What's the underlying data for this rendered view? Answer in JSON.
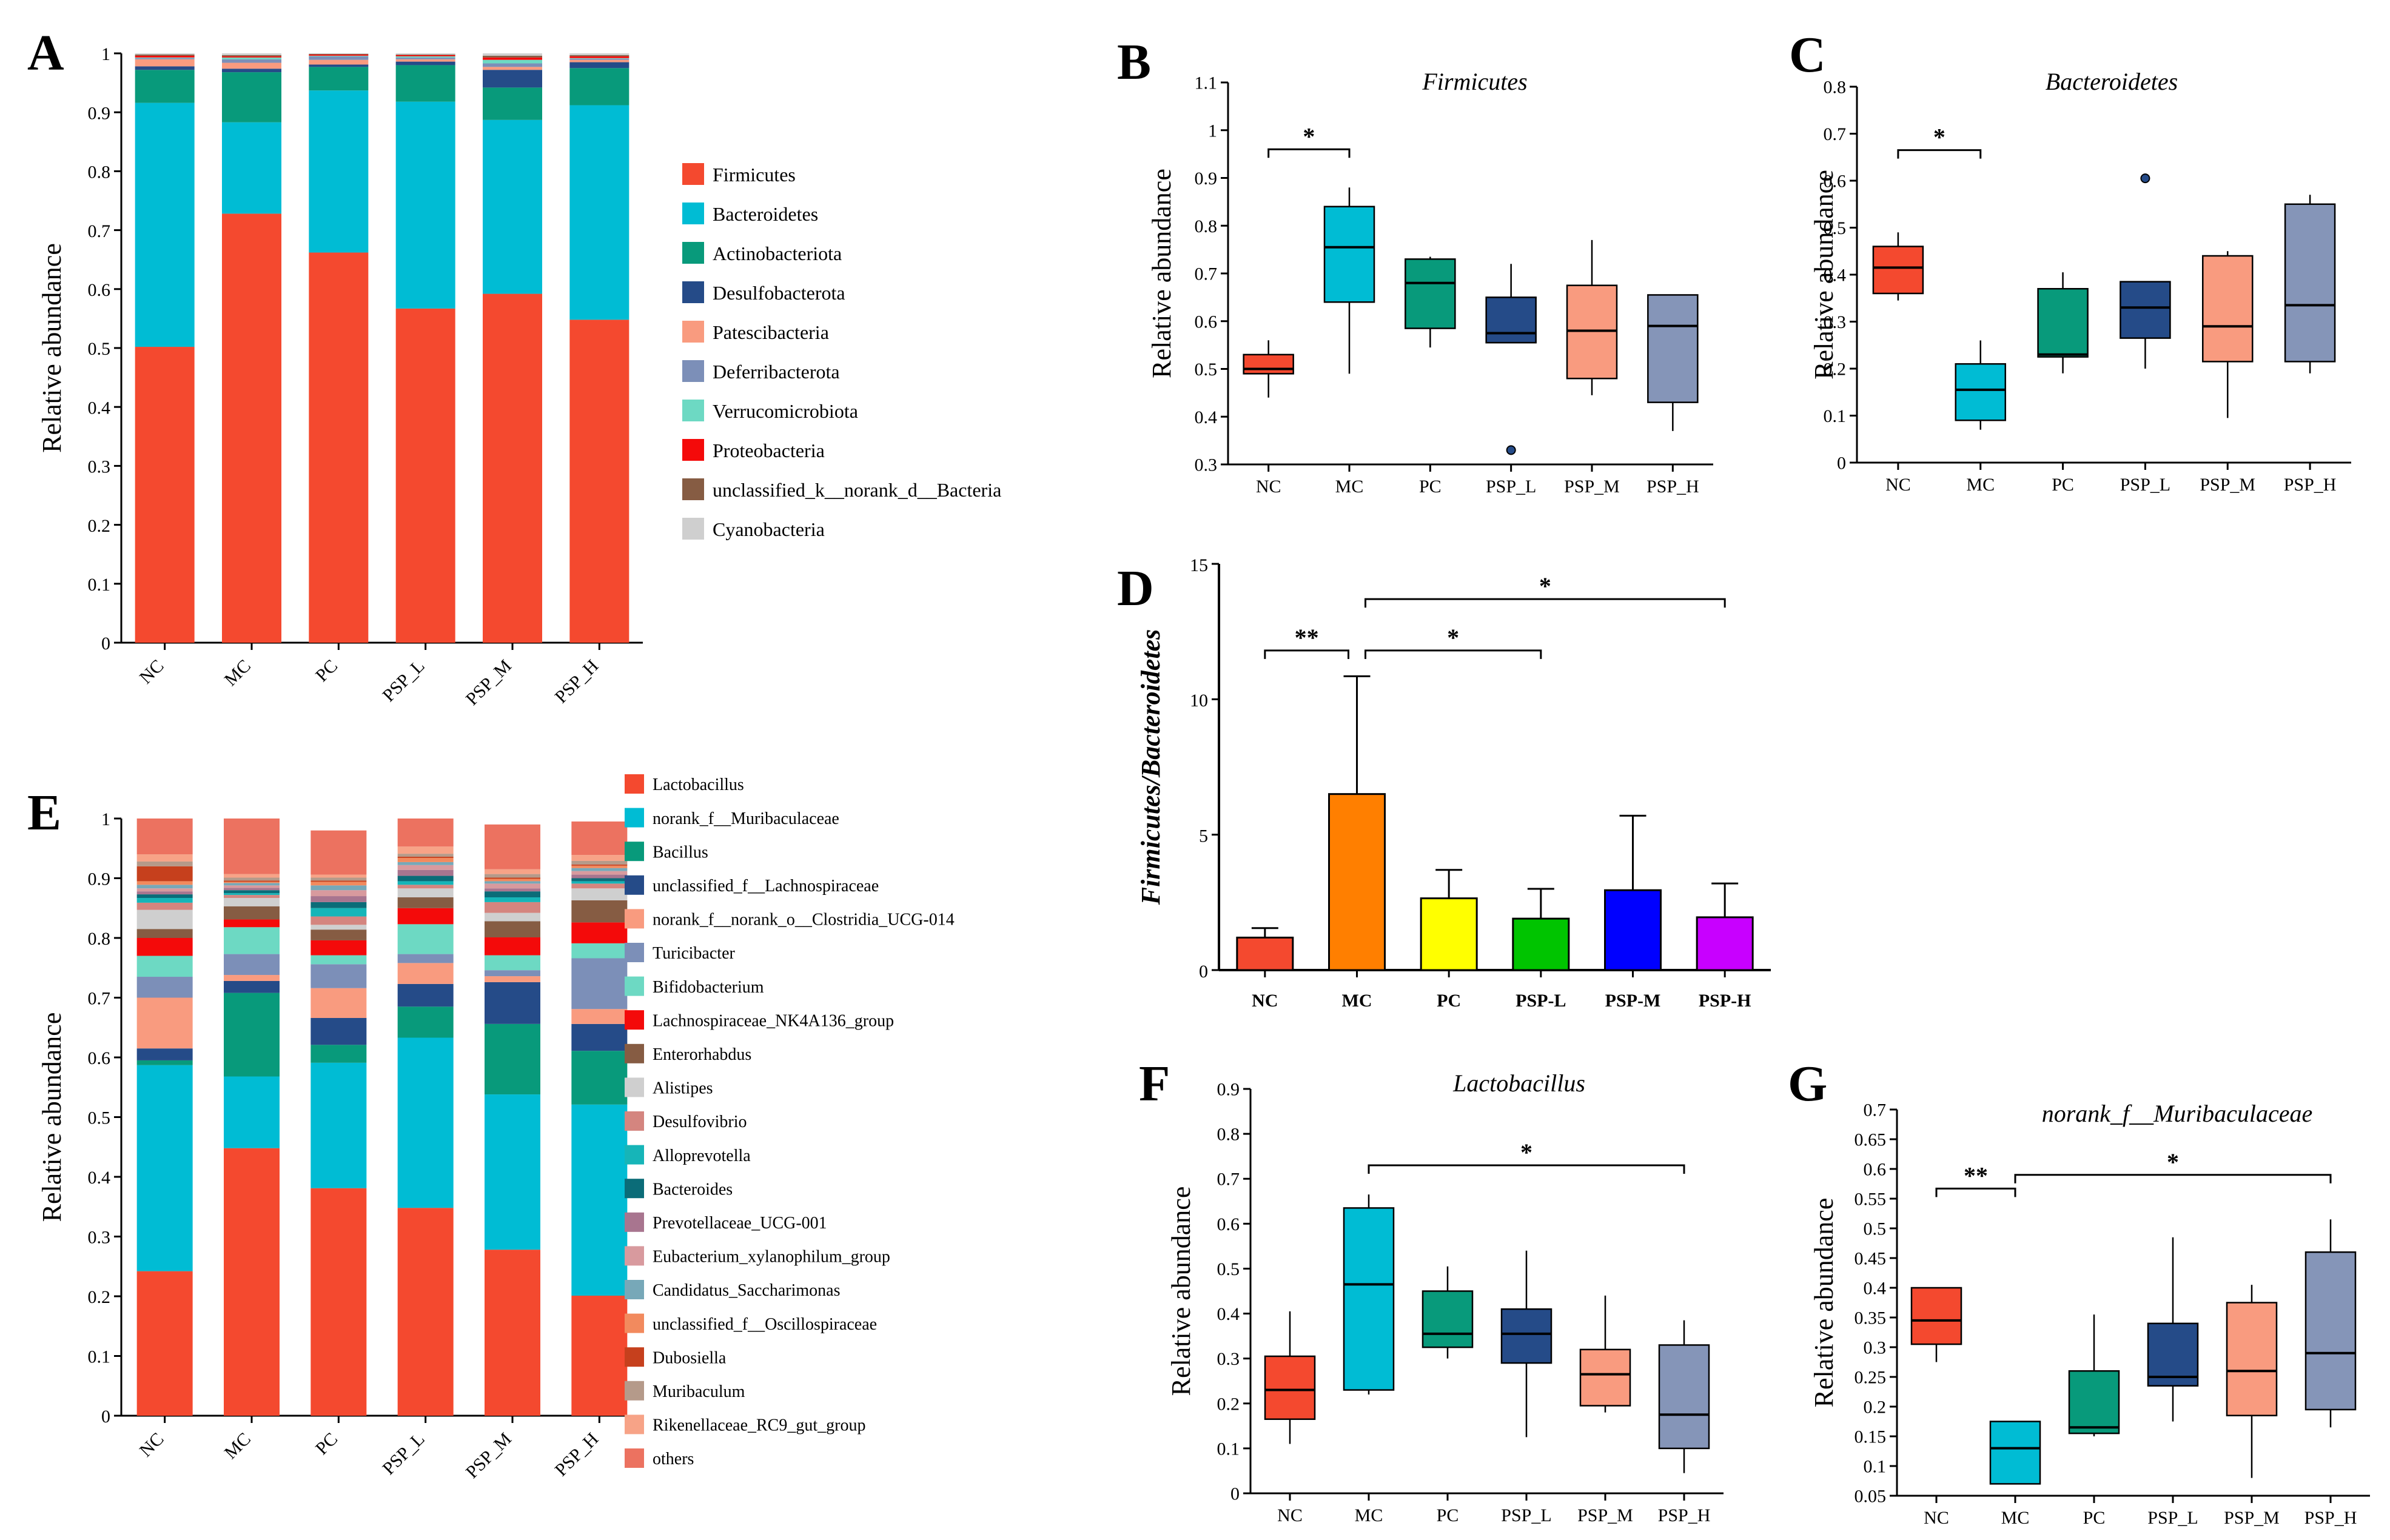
{
  "figure": {
    "colors": {
      "Firmicutes": "#f4492f",
      "Bacteroidetes": "#00bcd4",
      "Actinobacteriota": "#089a7b",
      "Desulfobacterota": "#254b88",
      "Patescibacteria": "#f99b7f",
      "Deferribacterota": "#7c8fb8",
      "Verrucomicrobiota": "#6dd9c3",
      "Proteobacteria": "#f40a0a",
      "unclassified_k__norank_d__Bacteria": "#865c43",
      "Cyanobacteria": "#cfcfcf",
      "box_NC": "#f4492f",
      "box_MC": "#00bcd4",
      "box_PC": "#089a7b",
      "box_PSP_L": "#254b88",
      "box_PSP_M": "#f99b7f",
      "box_PSP_H": "#8595b8"
    }
  },
  "chart_data": [
    {
      "panel": "A",
      "type": "bar",
      "stacked": true,
      "title": "",
      "xlabel": "",
      "ylabel": "Relative abundance",
      "ylim": [
        0,
        1
      ],
      "yticks": [
        "0",
        "0.1",
        "0.2",
        "0.3",
        "0.4",
        "0.5",
        "0.6",
        "0.7",
        "0.8",
        "0.9",
        "1"
      ],
      "categories": [
        "NC",
        "MC",
        "PC",
        "PSP_L",
        "PSP_M",
        "PSP_H"
      ],
      "series": [
        {
          "name": "Firmicutes",
          "values": [
            0.502,
            0.728,
            0.662,
            0.567,
            0.592,
            0.548
          ]
        },
        {
          "name": "Bacteroidetes",
          "values": [
            0.414,
            0.155,
            0.275,
            0.351,
            0.295,
            0.364
          ]
        },
        {
          "name": "Actinobacteriota",
          "values": [
            0.056,
            0.085,
            0.04,
            0.062,
            0.055,
            0.063
          ]
        },
        {
          "name": "Desulfobacterota",
          "values": [
            0.006,
            0.006,
            0.004,
            0.006,
            0.03,
            0.01
          ]
        },
        {
          "name": "Patescibacteria",
          "values": [
            0.012,
            0.01,
            0.008,
            0.004,
            0.005,
            0.004
          ]
        },
        {
          "name": "Deferribacterota",
          "values": [
            0.002,
            0.006,
            0.006,
            0.003,
            0.006,
            0.002
          ]
        },
        {
          "name": "Verrucomicrobiota",
          "values": [
            0.001,
            0.003,
            0.001,
            0.002,
            0.006,
            0.001
          ]
        },
        {
          "name": "Proteobacteria",
          "values": [
            0.003,
            0.002,
            0.002,
            0.002,
            0.004,
            0.003
          ]
        },
        {
          "name": "unclassified_k__norank_d__Bacteria",
          "values": [
            0.002,
            0.002,
            0.001,
            0.001,
            0.003,
            0.002
          ]
        },
        {
          "name": "Cyanobacteria",
          "values": [
            0.002,
            0.003,
            0.001,
            0.002,
            0.004,
            0.003
          ]
        }
      ]
    },
    {
      "panel": "B",
      "type": "box",
      "title": "Firmicutes",
      "ylabel": "Relative abundance",
      "ylim": [
        0.3,
        1.1
      ],
      "yticks": [
        "0.3",
        "0.4",
        "0.5",
        "0.6",
        "0.7",
        "0.8",
        "0.9",
        "1",
        "1.1"
      ],
      "categories": [
        "NC",
        "MC",
        "PC",
        "PSP_L",
        "PSP_M",
        "PSP_H"
      ],
      "boxes": [
        {
          "min": 0.44,
          "q1": 0.49,
          "median": 0.5,
          "q3": 0.53,
          "max": 0.56
        },
        {
          "min": 0.49,
          "q1": 0.64,
          "median": 0.755,
          "q3": 0.84,
          "max": 0.88
        },
        {
          "min": 0.545,
          "q1": 0.585,
          "median": 0.68,
          "q3": 0.73,
          "max": 0.735
        },
        {
          "min": 0.555,
          "q1": 0.555,
          "median": 0.575,
          "q3": 0.65,
          "max": 0.72,
          "outliers": [
            0.33
          ]
        },
        {
          "min": 0.445,
          "q1": 0.48,
          "median": 0.58,
          "q3": 0.675,
          "max": 0.77
        },
        {
          "min": 0.37,
          "q1": 0.43,
          "median": 0.59,
          "q3": 0.655,
          "max": 0.655
        }
      ],
      "significance": [
        {
          "from": 0,
          "to": 1,
          "label": "*",
          "y": 0.96
        }
      ]
    },
    {
      "panel": "C",
      "type": "box",
      "title": "Bacteroidetes",
      "ylabel": "Relative abundance",
      "ylim": [
        0,
        0.8
      ],
      "yticks": [
        "0",
        "0.1",
        "0.2",
        "0.3",
        "0.4",
        "0.5",
        "0.6",
        "0.7",
        "0.8"
      ],
      "categories": [
        "NC",
        "MC",
        "PC",
        "PSP_L",
        "PSP_M",
        "PSP_H"
      ],
      "boxes": [
        {
          "min": 0.345,
          "q1": 0.36,
          "median": 0.415,
          "q3": 0.46,
          "max": 0.49
        },
        {
          "min": 0.07,
          "q1": 0.09,
          "median": 0.155,
          "q3": 0.21,
          "max": 0.26
        },
        {
          "min": 0.19,
          "q1": 0.225,
          "median": 0.23,
          "q3": 0.37,
          "max": 0.405
        },
        {
          "min": 0.2,
          "q1": 0.265,
          "median": 0.33,
          "q3": 0.385,
          "max": 0.385,
          "outliers": [
            0.605
          ]
        },
        {
          "min": 0.095,
          "q1": 0.215,
          "median": 0.29,
          "q3": 0.44,
          "max": 0.45
        },
        {
          "min": 0.19,
          "q1": 0.215,
          "median": 0.335,
          "q3": 0.55,
          "max": 0.57
        }
      ],
      "significance": [
        {
          "from": 0,
          "to": 1,
          "label": "*",
          "y": 0.665
        }
      ]
    },
    {
      "panel": "D",
      "type": "bar",
      "title": "",
      "ylabel": "Firmicutes/Bacteroidetes",
      "ylim": [
        0,
        15
      ],
      "yticks": [
        "0",
        "5",
        "10",
        "15"
      ],
      "categories": [
        "NC",
        "MC",
        "PC",
        "PSP-L",
        "PSP-M",
        "PSP-H"
      ],
      "values": [
        1.2,
        6.5,
        2.65,
        1.9,
        2.95,
        1.95
      ],
      "errors": [
        0.35,
        4.35,
        1.05,
        1.1,
        2.75,
        1.25
      ],
      "bar_colors": [
        "#f4492f",
        "#ff7f00",
        "#ffff00",
        "#00c400",
        "#0000ff",
        "#c800ff"
      ],
      "significance": [
        {
          "from": 0,
          "to": 1,
          "label": "**",
          "y": 11.8
        },
        {
          "from": 1,
          "to": 3,
          "label": "*",
          "y": 11.8
        },
        {
          "from": 1,
          "to": 5,
          "label": "*",
          "y": 13.7
        }
      ]
    },
    {
      "panel": "E",
      "type": "bar",
      "stacked": true,
      "title": "",
      "ylabel": "Relative abundance",
      "ylim": [
        0,
        1
      ],
      "yticks": [
        "0",
        "0.1",
        "0.2",
        "0.3",
        "0.4",
        "0.5",
        "0.6",
        "0.7",
        "0.8",
        "0.9",
        "1"
      ],
      "categories": [
        "NC",
        "MC",
        "PC",
        "PSP_L",
        "PSP_M",
        "PSP_H"
      ],
      "series": [
        {
          "name": "Lactobacillus",
          "color": "#f4492f",
          "values": [
            0.242,
            0.448,
            0.381,
            0.348,
            0.278,
            0.201
          ]
        },
        {
          "name": "norank_f__Muribaculaceae",
          "color": "#00bcd4",
          "values": [
            0.345,
            0.12,
            0.21,
            0.285,
            0.26,
            0.32
          ]
        },
        {
          "name": "Bacillus",
          "color": "#089a7b",
          "values": [
            0.008,
            0.14,
            0.03,
            0.052,
            0.118,
            0.09
          ]
        },
        {
          "name": "unclassified_f__Lachnospiraceae",
          "color": "#254b88",
          "values": [
            0.02,
            0.02,
            0.045,
            0.038,
            0.07,
            0.045
          ]
        },
        {
          "name": "norank_f__norank_o__Clostridia_UCG-014",
          "color": "#f99b7f",
          "values": [
            0.085,
            0.01,
            0.05,
            0.035,
            0.01,
            0.025
          ]
        },
        {
          "name": "Turicibacter",
          "color": "#7c8fb8",
          "values": [
            0.035,
            0.035,
            0.04,
            0.015,
            0.01,
            0.085
          ]
        },
        {
          "name": "Bifidobacterium",
          "color": "#6dd9c3",
          "values": [
            0.035,
            0.045,
            0.015,
            0.05,
            0.025,
            0.025
          ]
        },
        {
          "name": "Lachnospiraceae_NK4A136_group",
          "color": "#f40a0a",
          "values": [
            0.03,
            0.013,
            0.025,
            0.027,
            0.03,
            0.035
          ]
        },
        {
          "name": "Enterorhabdus",
          "color": "#865c43",
          "values": [
            0.015,
            0.022,
            0.018,
            0.018,
            0.027,
            0.037
          ]
        },
        {
          "name": "Alistipes",
          "color": "#cfcfcf",
          "values": [
            0.032,
            0.014,
            0.008,
            0.015,
            0.014,
            0.02
          ]
        },
        {
          "name": "Desulfovibrio",
          "color": "#d4857f",
          "values": [
            0.012,
            0.005,
            0.014,
            0.006,
            0.018,
            0.008
          ]
        },
        {
          "name": "Alloprevotella",
          "color": "#16b5b8",
          "values": [
            0.008,
            0.003,
            0.014,
            0.006,
            0.008,
            0.004
          ]
        },
        {
          "name": "Bacteroides",
          "color": "#0b6c78",
          "values": [
            0.006,
            0.005,
            0.01,
            0.009,
            0.01,
            0.005
          ]
        },
        {
          "name": "Prevotellaceae_UCG-001",
          "color": "#a8758f",
          "values": [
            0.005,
            0.004,
            0.01,
            0.01,
            0.005,
            0.006
          ]
        },
        {
          "name": "Eubacterium_xylanophilum_group",
          "color": "#d89a9e",
          "values": [
            0.005,
            0.004,
            0.01,
            0.008,
            0.008,
            0.006
          ]
        },
        {
          "name": "Candidatus_Saccharimonas",
          "color": "#77a8b8",
          "values": [
            0.006,
            0.004,
            0.008,
            0.005,
            0.004,
            0.005
          ]
        },
        {
          "name": "unclassified_f__Oscillospiraceae",
          "color": "#f28a5e",
          "values": [
            0.006,
            0.002,
            0.006,
            0.007,
            0.004,
            0.004
          ]
        },
        {
          "name": "Dubosiella",
          "color": "#c6401d",
          "values": [
            0.025,
            0.002,
            0.002,
            0.002,
            0.002,
            0.002
          ]
        },
        {
          "name": "Muribaculum",
          "color": "#b59a8a",
          "values": [
            0.008,
            0.005,
            0.005,
            0.005,
            0.006,
            0.006
          ]
        },
        {
          "name": "Rikenellaceae_RC9_gut_group",
          "color": "#f7a387",
          "values": [
            0.012,
            0.006,
            0.005,
            0.012,
            0.008,
            0.01
          ]
        },
        {
          "name": "others",
          "color": "#ec7260",
          "values": [
            0.06,
            0.093,
            0.074,
            0.047,
            0.075,
            0.056
          ]
        }
      ]
    },
    {
      "panel": "F",
      "type": "box",
      "title": "Lactobacillus",
      "ylabel": "Relative abundance",
      "ylim": [
        0,
        0.9
      ],
      "yticks": [
        "0",
        "0.1",
        "0.2",
        "0.3",
        "0.4",
        "0.5",
        "0.6",
        "0.7",
        "0.8",
        "0.9"
      ],
      "categories": [
        "NC",
        "MC",
        "PC",
        "PSP_L",
        "PSP_M",
        "PSP_H"
      ],
      "boxes": [
        {
          "min": 0.11,
          "q1": 0.165,
          "median": 0.23,
          "q3": 0.305,
          "max": 0.405
        },
        {
          "min": 0.22,
          "q1": 0.23,
          "median": 0.465,
          "q3": 0.635,
          "max": 0.665
        },
        {
          "min": 0.3,
          "q1": 0.325,
          "median": 0.355,
          "q3": 0.45,
          "max": 0.505
        },
        {
          "min": 0.125,
          "q1": 0.29,
          "median": 0.355,
          "q3": 0.41,
          "max": 0.54
        },
        {
          "min": 0.18,
          "q1": 0.195,
          "median": 0.265,
          "q3": 0.32,
          "max": 0.44
        },
        {
          "min": 0.045,
          "q1": 0.1,
          "median": 0.175,
          "q3": 0.33,
          "max": 0.385
        }
      ],
      "significance": [
        {
          "from": 1,
          "to": 5,
          "label": "*",
          "y": 0.73
        }
      ]
    },
    {
      "panel": "G",
      "type": "box",
      "title": "norank_f__Muribaculaceae",
      "ylabel": "Relative abundance",
      "ylim": [
        0.05,
        0.7
      ],
      "yticks": [
        "0.05",
        "0.1",
        "0.15",
        "0.2",
        "0.25",
        "0.3",
        "0.35",
        "0.4",
        "0.45",
        "0.5",
        "0.55",
        "0.6",
        "0.65",
        "0.7"
      ],
      "categories": [
        "NC",
        "MC",
        "PC",
        "PSP_L",
        "PSP_M",
        "PSP_H"
      ],
      "boxes": [
        {
          "min": 0.275,
          "q1": 0.305,
          "median": 0.345,
          "q3": 0.4,
          "max": 0.4
        },
        {
          "min": 0.07,
          "q1": 0.07,
          "median": 0.13,
          "q3": 0.175,
          "max": 0.175
        },
        {
          "min": 0.15,
          "q1": 0.155,
          "median": 0.165,
          "q3": 0.26,
          "max": 0.355
        },
        {
          "min": 0.175,
          "q1": 0.235,
          "median": 0.25,
          "q3": 0.34,
          "max": 0.485
        },
        {
          "min": 0.08,
          "q1": 0.185,
          "median": 0.26,
          "q3": 0.375,
          "max": 0.405
        },
        {
          "min": 0.165,
          "q1": 0.195,
          "median": 0.29,
          "q3": 0.46,
          "max": 0.515
        }
      ],
      "significance": [
        {
          "from": 0,
          "to": 1,
          "label": "**",
          "y": 0.567
        },
        {
          "from": 1,
          "to": 5,
          "label": "*",
          "y": 0.59
        }
      ]
    }
  ]
}
